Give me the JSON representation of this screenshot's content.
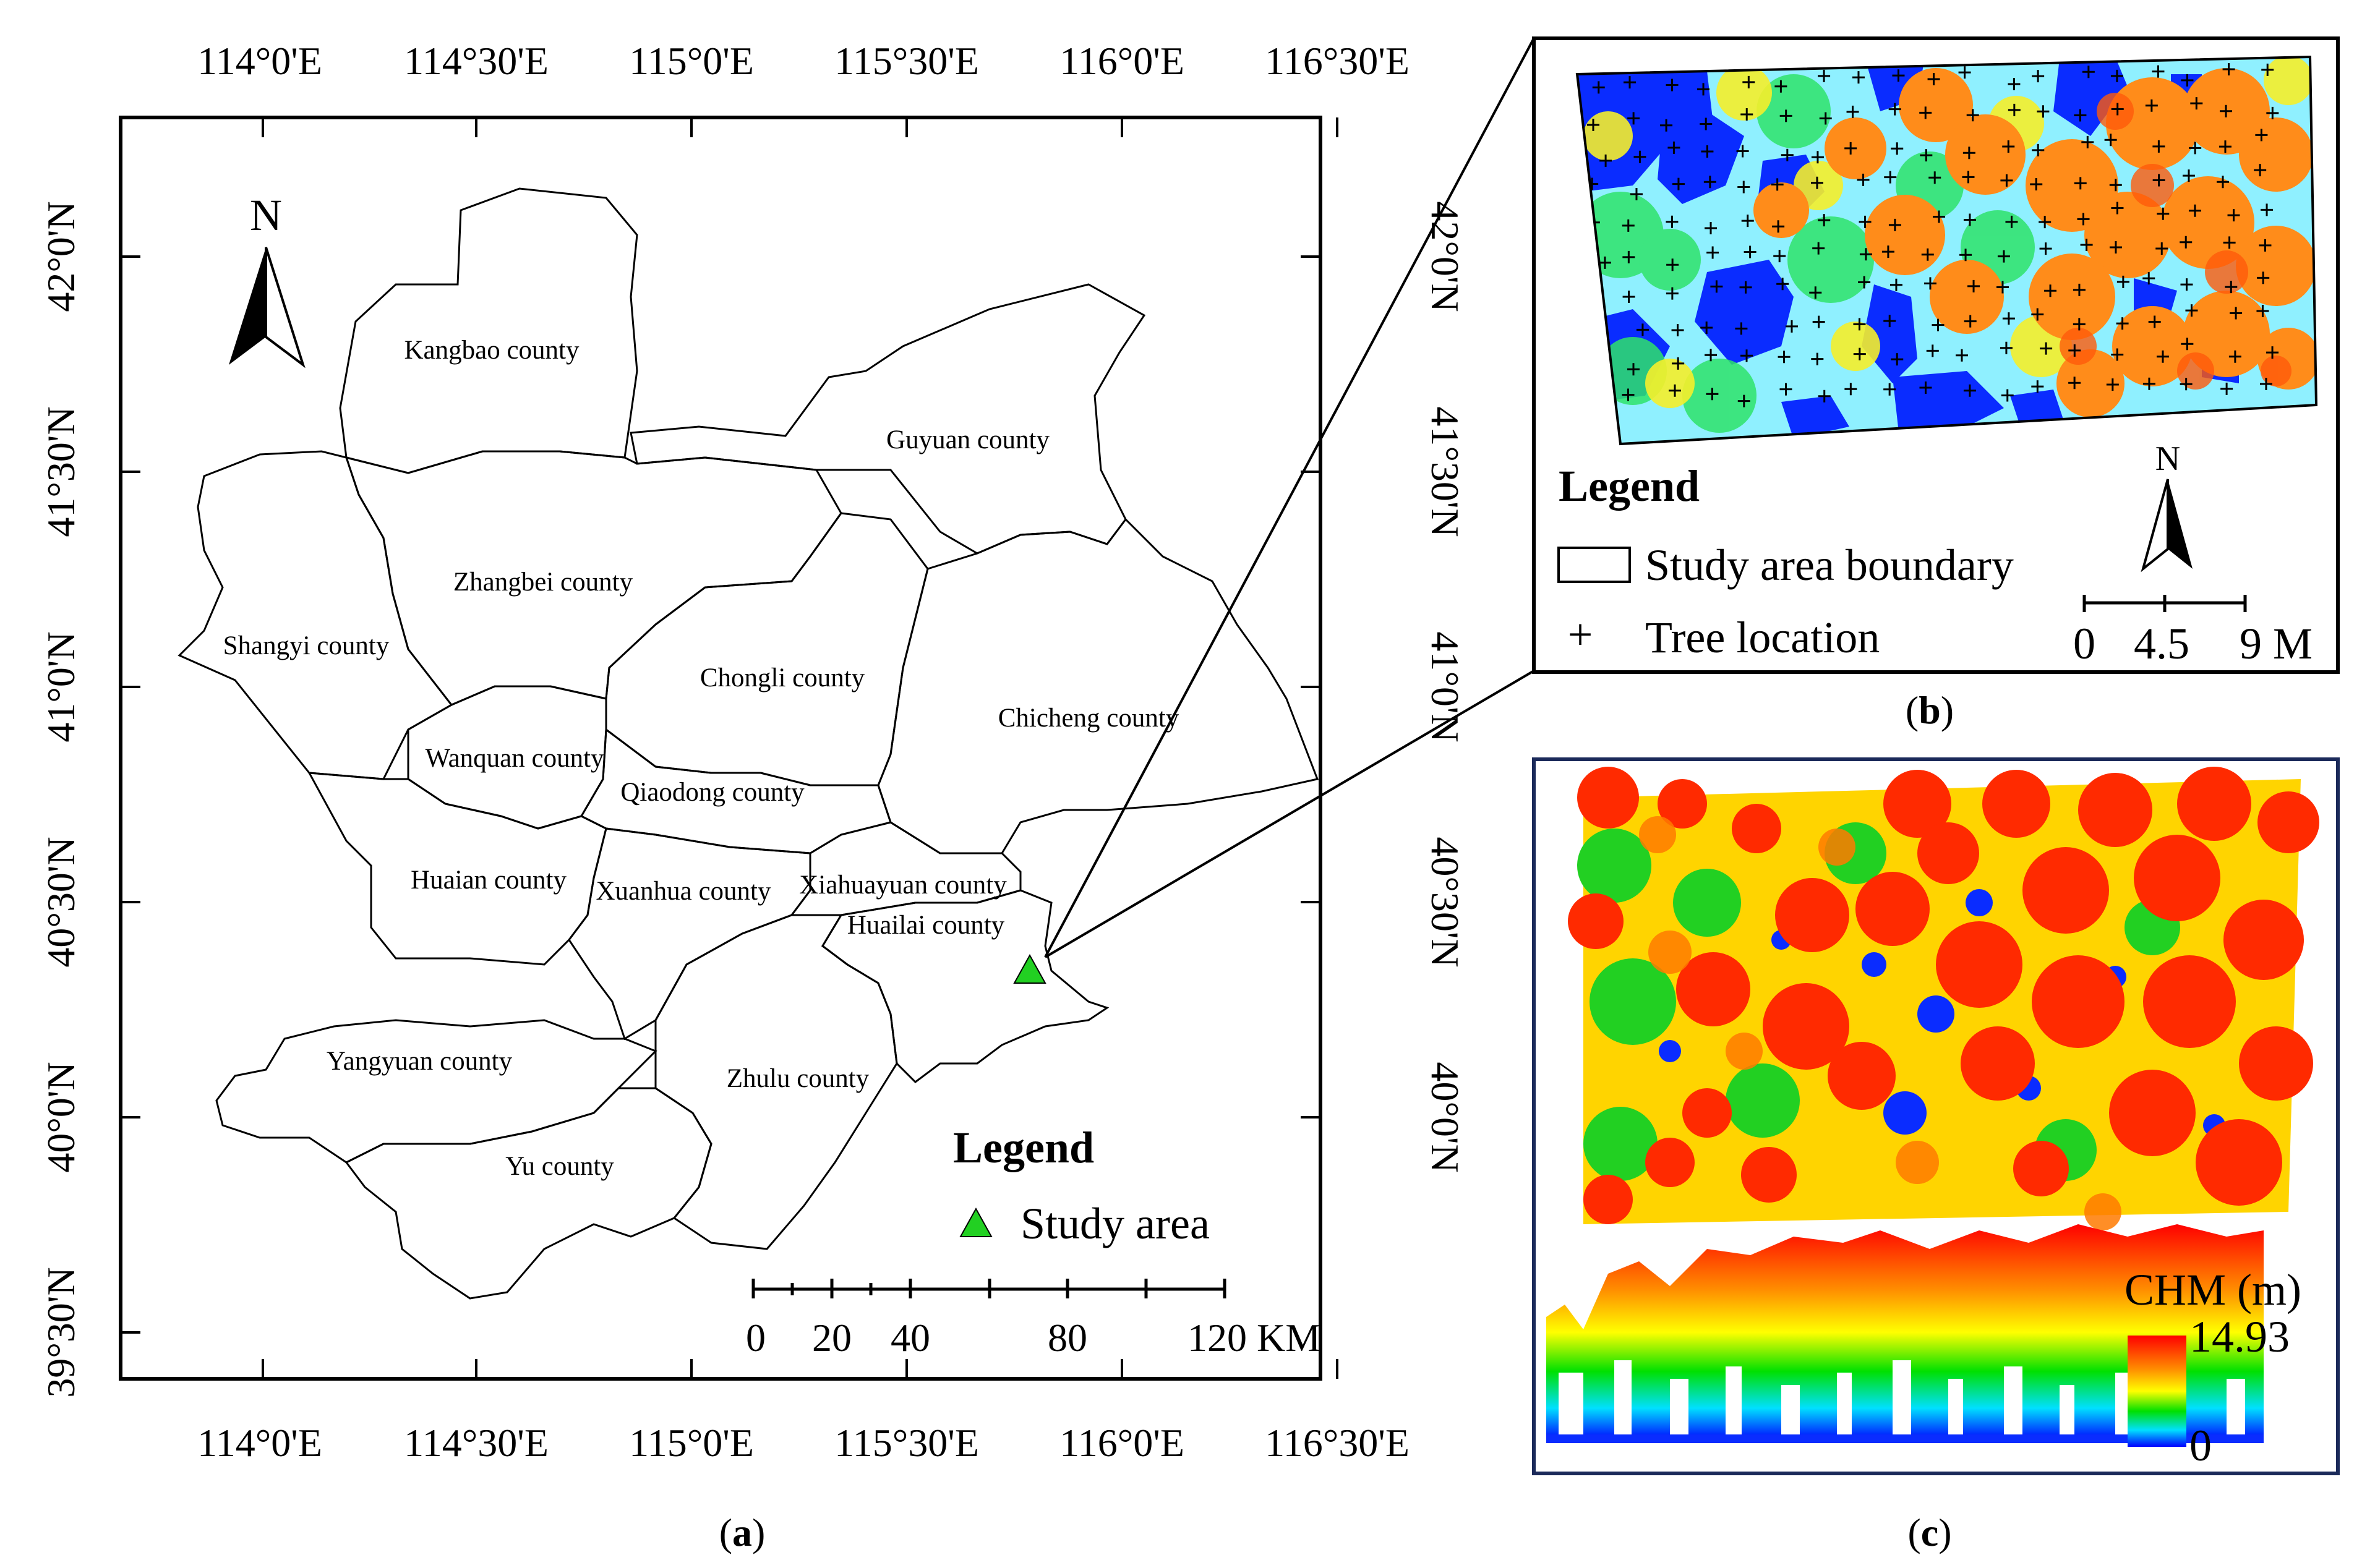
{
  "panel_a": {
    "top_lon_labels": [
      "114°0'E",
      "114°30'E",
      "115°0'E",
      "115°30'E",
      "116°0'E",
      "116°30'E"
    ],
    "bottom_lon_labels": [
      "114°0'E",
      "114°30'E",
      "115°0'E",
      "115°30'E",
      "116°0'E",
      "116°30'E"
    ],
    "left_lat_labels": [
      "42°0'N",
      "41°30'N",
      "41°0'N",
      "40°30'N",
      "40°0'N",
      "39°30'N"
    ],
    "right_lat_labels": [
      "42°0'N",
      "41°30'N",
      "41°0'N",
      "40°30'N",
      "40°0'N"
    ],
    "north_label": "N",
    "counties": [
      "Kangbao county",
      "Guyuan county",
      "Zhangbei county",
      "Shangyi county",
      "Chongli county",
      "Chicheng county",
      "Wanquan county",
      "Qiaodong county",
      "Huaian county",
      "Xuanhua county",
      "Xiahuayuan county",
      "Huailai county",
      "Yangyuan county",
      "Zhulu county",
      "Yu county"
    ],
    "highlight_color": "#e6c8ec",
    "legend_title": "Legend",
    "legend_item": "Study area",
    "study_marker_color": "#22d022",
    "scale_labels": [
      "0",
      "20",
      "40",
      "80",
      "120 KM"
    ],
    "caption_open": "(",
    "caption_letter": "a",
    "caption_close": ")"
  },
  "panel_b": {
    "legend_title": "Legend",
    "boundary_label": "Study area boundary",
    "tree_symbol": "+",
    "tree_label": "Tree location",
    "north_label": "N",
    "scale_labels": [
      "0",
      "4.5",
      "9 M"
    ],
    "caption_open": "(",
    "caption_letter": "b",
    "caption_close": ")"
  },
  "panel_c": {
    "colorbar_title": "CHM (m)",
    "colorbar_max": "14.93",
    "colorbar_min": "0",
    "colors": [
      "#e00000",
      "#ff7a00",
      "#ffff00",
      "#00c800",
      "#00ffff",
      "#0000ff"
    ],
    "caption_open": "(",
    "caption_letter": "c",
    "caption_close": ")"
  }
}
